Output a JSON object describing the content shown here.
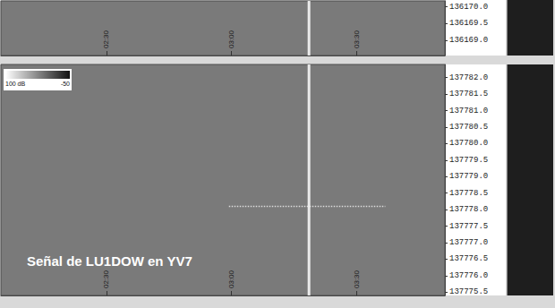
{
  "chart_data": [
    {
      "type": "spectrogram",
      "xlim": [
        124.7,
        231.2
      ],
      "xticks": [
        {
          "value": 150,
          "label": "02:30"
        },
        {
          "value": 180,
          "label": "03:00"
        },
        {
          "value": 210,
          "label": "03:30"
        }
      ],
      "ylim": [
        136168.55,
        136170.18
      ],
      "yticks": [
        {
          "value": 136169.0,
          "label": "136169.0"
        },
        {
          "value": 136169.5,
          "label": "136169.5"
        },
        {
          "value": 136170.0,
          "label": "136170.0"
        }
      ],
      "series": [
        {
          "type": "line",
          "color": "#ffffff",
          "line_style": "solid",
          "x": [
            198.6,
            198.6
          ],
          "values": [
            136168.55,
            136170.18
          ]
        }
      ]
    },
    {
      "type": "spectrogram",
      "title": "Señal de LU1DOW en YV7",
      "xlim": [
        124.7,
        231.2
      ],
      "xticks": [
        {
          "value": 150,
          "label": "02:30"
        },
        {
          "value": 180,
          "label": "03:00"
        },
        {
          "value": 210,
          "label": "03:30"
        }
      ],
      "ylim": [
        137775.4,
        137782.4
      ],
      "yticks": [
        {
          "value": 137775.5,
          "label": "137775.5"
        },
        {
          "value": 137776.0,
          "label": "137776.0"
        },
        {
          "value": 137776.5,
          "label": "137776.5"
        },
        {
          "value": 137777.0,
          "label": "137777.0"
        },
        {
          "value": 137777.5,
          "label": "137777.5"
        },
        {
          "value": 137778.0,
          "label": "137778.0"
        },
        {
          "value": 137778.5,
          "label": "137778.5"
        },
        {
          "value": 137779.0,
          "label": "137779.0"
        },
        {
          "value": 137779.5,
          "label": "137779.5"
        },
        {
          "value": 137780.0,
          "label": "137780.0"
        },
        {
          "value": 137780.5,
          "label": "137780.5"
        },
        {
          "value": 137781.0,
          "label": "137781.0"
        },
        {
          "value": 137781.5,
          "label": "137781.5"
        },
        {
          "value": 137782.0,
          "label": "137782.0"
        }
      ],
      "colorbar_ticks": [
        {
          "value": 100,
          "label": "100 dB"
        },
        {
          "value": -50,
          "label": "-50"
        }
      ],
      "series": [
        {
          "type": "line",
          "color": "#ffffff",
          "line_style": "solid",
          "x": [
            198.6,
            198.6
          ],
          "values": [
            137775.4,
            137782.4
          ]
        },
        {
          "type": "line",
          "color": "#eeeeee",
          "line_style": "dotted",
          "x": [
            179.4,
            216.9
          ],
          "values": [
            137778.1,
            137778.1
          ]
        }
      ]
    }
  ]
}
